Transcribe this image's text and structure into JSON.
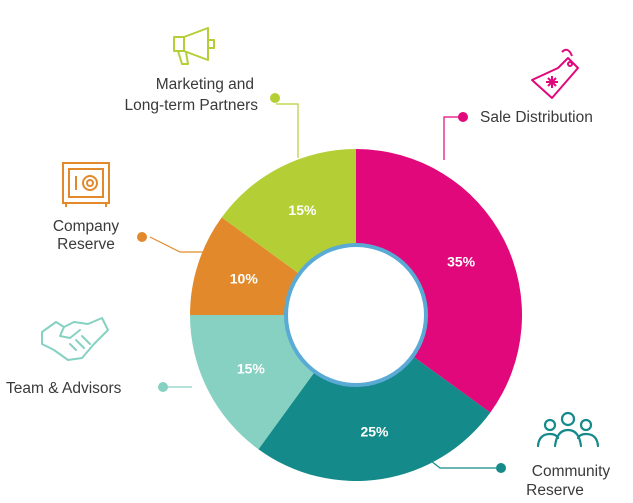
{
  "chart_data": {
    "type": "donut",
    "title": "",
    "slices": [
      {
        "label": "Sale Distribution",
        "value": 35,
        "value_label": "35%",
        "color": "#e0087a",
        "icon": "price-tag-icon"
      },
      {
        "label": "Community Reserve",
        "value": 25,
        "value_label": "25%",
        "color": "#158a8a",
        "icon": "community-group-icon"
      },
      {
        "label": "Team & Advisors",
        "value": 15,
        "value_label": "15%",
        "color": "#86d1c1",
        "icon": "handshake-icon"
      },
      {
        "label": "Company Reserve",
        "value": 10,
        "value_label": "10%",
        "color": "#e28a2b",
        "icon": "safe-icon"
      },
      {
        "label": "Marketing and Long-term Partners",
        "value": 15,
        "value_label": "15%",
        "color": "#b4cf35",
        "icon": "megaphone-icon"
      }
    ],
    "inner_ring_color": "#5aaad6"
  },
  "labels": {
    "sale": [
      "Sale Distribution"
    ],
    "community": [
      "Community",
      "Reserve"
    ],
    "team": [
      "Team & Advisors"
    ],
    "company": [
      "Company",
      "Reserve"
    ],
    "marketing": [
      "Marketing and",
      "Long-term Partners"
    ]
  }
}
